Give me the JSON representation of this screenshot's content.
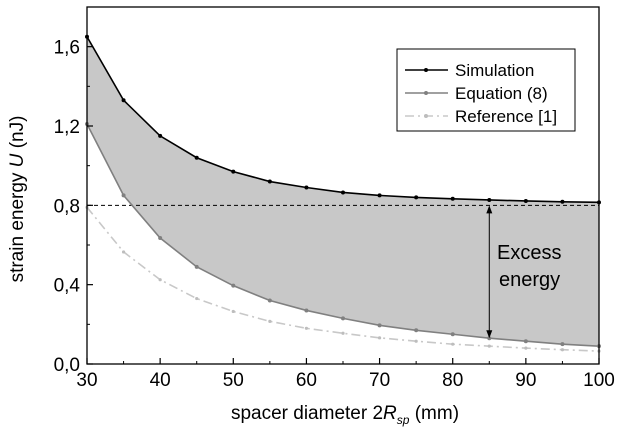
{
  "chart_data": {
    "type": "line",
    "title": "",
    "xlabel_prefix": "spacer diameter 2",
    "xlabel_italic": "R",
    "xlabel_subscript": "sp",
    "xlabel_suffix": " (mm)",
    "ylabel_prefix": "strain energy ",
    "ylabel_italic": "U",
    "ylabel_suffix": " (nJ)",
    "xlim": [
      30,
      100
    ],
    "ylim": [
      0,
      1.8
    ],
    "x_ticks": [
      30,
      40,
      50,
      60,
      70,
      80,
      90,
      100
    ],
    "x_tick_labels": [
      "30",
      "40",
      "50",
      "60",
      "70",
      "80",
      "90",
      "100"
    ],
    "y_ticks": [
      0,
      0.4,
      0.8,
      1.2,
      1.6
    ],
    "y_tick_labels": [
      "0,0",
      "0,4",
      "0,8",
      "1,2",
      "1,6"
    ],
    "grid": false,
    "legend_position": "top-right",
    "x": [
      30,
      35,
      40,
      45,
      50,
      55,
      60,
      65,
      70,
      75,
      80,
      85,
      90,
      95,
      100
    ],
    "series": [
      {
        "name": "Simulation",
        "style": "solid",
        "color": "#000000",
        "values": [
          1.65,
          1.33,
          1.15,
          1.04,
          0.97,
          0.92,
          0.89,
          0.865,
          0.85,
          0.84,
          0.833,
          0.827,
          0.822,
          0.818,
          0.815
        ]
      },
      {
        "name": "Equation (8)",
        "style": "solid",
        "color": "#808080",
        "values": [
          1.21,
          0.85,
          0.635,
          0.49,
          0.395,
          0.32,
          0.27,
          0.23,
          0.195,
          0.17,
          0.15,
          0.13,
          0.115,
          0.1,
          0.09
        ]
      },
      {
        "name": "Reference [1]",
        "style": "dashdot",
        "color": "#c8c8c8",
        "values": [
          0.79,
          0.565,
          0.425,
          0.33,
          0.265,
          0.215,
          0.18,
          0.155,
          0.132,
          0.115,
          0.1,
          0.09,
          0.08,
          0.072,
          0.065
        ]
      }
    ],
    "shaded_region": {
      "between": [
        "Simulation",
        "Equation (8)"
      ],
      "color": "#c8c8c8"
    },
    "reference_line": {
      "y": 0.8,
      "style": "dashed",
      "color": "#000000"
    },
    "annotation": {
      "text_line1": "Excess",
      "text_line2": "energy",
      "arrow_x": 85,
      "arrow_from_y": 0.8,
      "arrow_to_y": 0.13
    }
  }
}
